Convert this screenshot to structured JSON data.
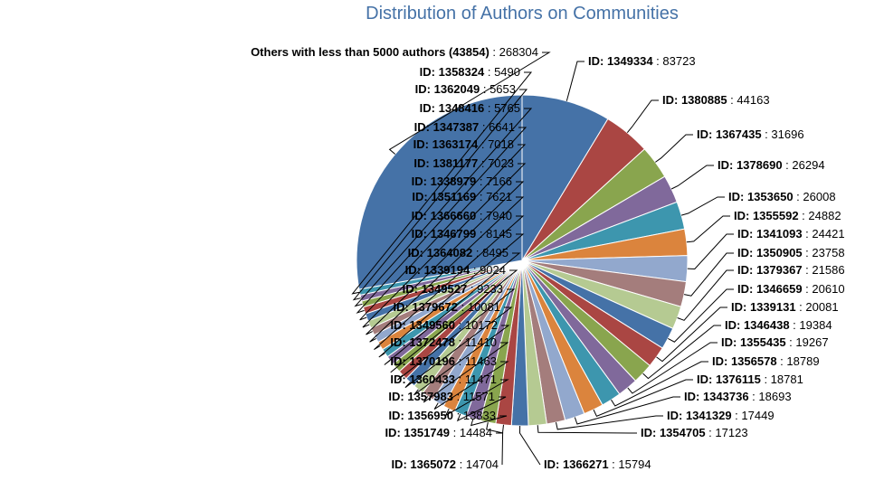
{
  "chart_data": {
    "type": "pie",
    "title": "Distribution of Authors on Communities",
    "slices": [
      {
        "label": "ID: 1349334",
        "value": 83723,
        "color": "#4572a7"
      },
      {
        "label": "ID: 1380885",
        "value": 44163,
        "color": "#aa4643"
      },
      {
        "label": "ID: 1367435",
        "value": 31696,
        "color": "#89a54e"
      },
      {
        "label": "ID: 1378690",
        "value": 26294,
        "color": "#80699b"
      },
      {
        "label": "ID: 1353650",
        "value": 26008,
        "color": "#3d96ae"
      },
      {
        "label": "ID: 1355592",
        "value": 24882,
        "color": "#db843d"
      },
      {
        "label": "ID: 1341093",
        "value": 24421,
        "color": "#92a8cd"
      },
      {
        "label": "ID: 1350905",
        "value": 23758,
        "color": "#a47d7c"
      },
      {
        "label": "ID: 1379367",
        "value": 21586,
        "color": "#b5ca92"
      },
      {
        "label": "ID: 1346659",
        "value": 20610,
        "color": "#4572a7"
      },
      {
        "label": "ID: 1339131",
        "value": 20081,
        "color": "#aa4643"
      },
      {
        "label": "ID: 1346438",
        "value": 19384,
        "color": "#89a54e"
      },
      {
        "label": "ID: 1355435",
        "value": 19267,
        "color": "#80699b"
      },
      {
        "label": "ID: 1356578",
        "value": 18789,
        "color": "#3d96ae"
      },
      {
        "label": "ID: 1376115",
        "value": 18781,
        "color": "#db843d"
      },
      {
        "label": "ID: 1343736",
        "value": 18693,
        "color": "#92a8cd"
      },
      {
        "label": "ID: 1341329",
        "value": 17449,
        "color": "#a47d7c"
      },
      {
        "label": "ID: 1354705",
        "value": 17123,
        "color": "#b5ca92"
      },
      {
        "label": "ID: 1366271",
        "value": 15794,
        "color": "#4572a7"
      },
      {
        "label": "ID: 1365072",
        "value": 14704,
        "color": "#aa4643"
      },
      {
        "label": "ID: 1351749",
        "value": 14484,
        "color": "#89a54e"
      },
      {
        "label": "ID: 1356950",
        "value": 13833,
        "color": "#80699b"
      },
      {
        "label": "ID: 1357983",
        "value": 11571,
        "color": "#3d96ae"
      },
      {
        "label": "ID: 1360433",
        "value": 11471,
        "color": "#db843d"
      },
      {
        "label": "ID: 1370196",
        "value": 11463,
        "color": "#92a8cd"
      },
      {
        "label": "ID: 1372478",
        "value": 11410,
        "color": "#a47d7c"
      },
      {
        "label": "ID: 1349560",
        "value": 10172,
        "color": "#b5ca92"
      },
      {
        "label": "ID: 1379672",
        "value": 10081,
        "color": "#4572a7"
      },
      {
        "label": "ID: 1349527",
        "value": 9233,
        "color": "#aa4643"
      },
      {
        "label": "ID: 1339194",
        "value": 9024,
        "color": "#89a54e"
      },
      {
        "label": "ID: 1364082",
        "value": 8495,
        "color": "#80699b"
      },
      {
        "label": "ID: 1346799",
        "value": 8145,
        "color": "#3d96ae"
      },
      {
        "label": "ID: 1366660",
        "value": 7940,
        "color": "#db843d"
      },
      {
        "label": "ID: 1351169",
        "value": 7621,
        "color": "#92a8cd"
      },
      {
        "label": "ID: 1338979",
        "value": 7166,
        "color": "#a47d7c"
      },
      {
        "label": "ID: 1381177",
        "value": 7023,
        "color": "#b5ca92"
      },
      {
        "label": "ID: 1363174",
        "value": 7018,
        "color": "#4572a7"
      },
      {
        "label": "ID: 1347387",
        "value": 6641,
        "color": "#aa4643"
      },
      {
        "label": "ID: 1348416",
        "value": 5765,
        "color": "#89a54e"
      },
      {
        "label": "ID: 1362049",
        "value": 5653,
        "color": "#80699b"
      },
      {
        "label": "ID: 1358324",
        "value": 5490,
        "color": "#3d96ae"
      },
      {
        "label": "Others with less than 5000 authors (43854)",
        "value": 268304,
        "color": "#4572a7"
      }
    ]
  }
}
